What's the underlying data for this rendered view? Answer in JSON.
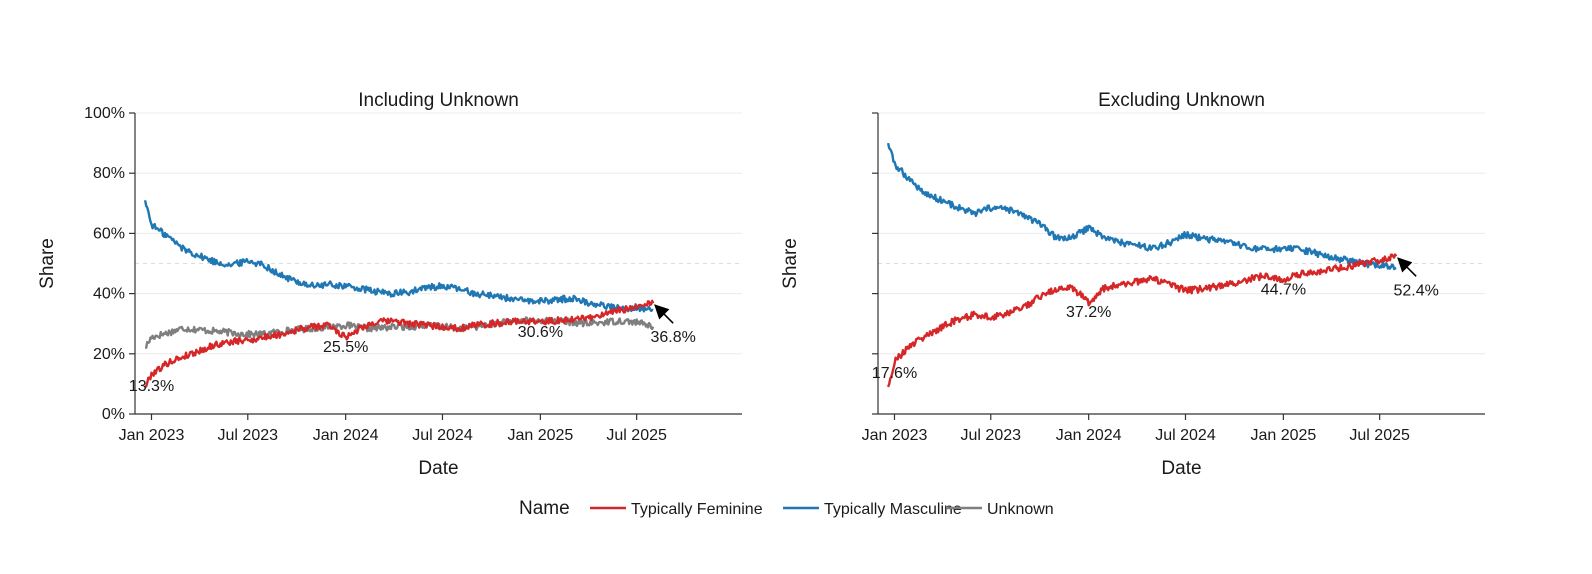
{
  "chart_data": [
    {
      "type": "line",
      "title": "Including Unknown",
      "xlabel": "Date",
      "ylabel": "Share",
      "ylim": [
        0,
        100
      ],
      "y_ticks": [
        0,
        20,
        40,
        60,
        80,
        100
      ],
      "y_tick_labels": [
        "0%",
        "20%",
        "40%",
        "60%",
        "80%",
        "100%"
      ],
      "xlim": [
        "2022-12-01",
        "2026-01-15"
      ],
      "x_ticks": [
        "2023-01-01",
        "2023-07-01",
        "2024-01-01",
        "2024-07-01",
        "2025-01-01",
        "2025-07-01"
      ],
      "x_tick_labels": [
        "Jan 2023",
        "Jul 2023",
        "Jan 2024",
        "Jul 2024",
        "Jan 2025",
        "Jul 2025"
      ],
      "grid": "horizontal",
      "reference_line": 50,
      "series": [
        {
          "name": "Typically Feminine",
          "color": "#d62728",
          "x": [
            "2022-12-20",
            "2023-01-01",
            "2023-01-15",
            "2023-02-01",
            "2023-03-01",
            "2023-04-01",
            "2023-05-01",
            "2023-06-01",
            "2023-07-01",
            "2023-08-01",
            "2023-09-01",
            "2023-10-01",
            "2023-11-01",
            "2023-12-01",
            "2024-01-01",
            "2024-02-01",
            "2024-03-01",
            "2024-04-01",
            "2024-05-01",
            "2024-06-01",
            "2024-07-01",
            "2024-08-01",
            "2024-09-01",
            "2024-10-01",
            "2024-11-01",
            "2024-12-01",
            "2025-01-01",
            "2025-02-01",
            "2025-03-01",
            "2025-04-01",
            "2025-05-01",
            "2025-06-01",
            "2025-07-01",
            "2025-08-01"
          ],
          "y": [
            9,
            13.3,
            15,
            17,
            19,
            21,
            23,
            24,
            24.5,
            25.5,
            26.5,
            28,
            29,
            29.5,
            25.5,
            29,
            30.5,
            31,
            30,
            29.5,
            29,
            28.5,
            29.5,
            30,
            30.5,
            31,
            30.6,
            31,
            31.5,
            32,
            33,
            34.5,
            35.5,
            36.8
          ]
        },
        {
          "name": "Typically Masculine",
          "color": "#1f77b4",
          "x": [
            "2022-12-20",
            "2023-01-01",
            "2023-01-15",
            "2023-02-01",
            "2023-03-01",
            "2023-04-01",
            "2023-05-01",
            "2023-06-01",
            "2023-07-01",
            "2023-08-01",
            "2023-09-01",
            "2023-10-01",
            "2023-11-01",
            "2023-12-01",
            "2024-01-01",
            "2024-02-01",
            "2024-03-01",
            "2024-04-01",
            "2024-05-01",
            "2024-06-01",
            "2024-07-01",
            "2024-08-01",
            "2024-09-01",
            "2024-10-01",
            "2024-11-01",
            "2024-12-01",
            "2025-01-01",
            "2025-02-01",
            "2025-03-01",
            "2025-04-01",
            "2025-05-01",
            "2025-06-01",
            "2025-07-01",
            "2025-08-01"
          ],
          "y": [
            71,
            63,
            61,
            59,
            55,
            52.5,
            50.5,
            49.5,
            51,
            49.5,
            46,
            44,
            42.5,
            43,
            42.5,
            41.5,
            40.5,
            40,
            40.5,
            42,
            42.5,
            41.5,
            40,
            39.5,
            38.5,
            37.5,
            37.5,
            38,
            38.5,
            37,
            36,
            35,
            35.5,
            34.5
          ]
        },
        {
          "name": "Unknown",
          "color": "#7f7f7f",
          "x": [
            "2022-12-20",
            "2023-01-01",
            "2023-02-01",
            "2023-03-01",
            "2023-04-01",
            "2023-05-01",
            "2023-06-01",
            "2023-07-01",
            "2023-08-01",
            "2023-09-01",
            "2023-10-01",
            "2023-11-01",
            "2023-12-01",
            "2024-01-01",
            "2024-02-01",
            "2024-03-01",
            "2024-04-01",
            "2024-05-01",
            "2024-06-01",
            "2024-07-01",
            "2024-08-01",
            "2024-09-01",
            "2024-10-01",
            "2024-11-01",
            "2024-12-01",
            "2025-01-01",
            "2025-02-01",
            "2025-03-01",
            "2025-04-01",
            "2025-05-01",
            "2025-06-01",
            "2025-07-01",
            "2025-08-01"
          ],
          "y": [
            22,
            25.5,
            27,
            28.5,
            28,
            27.5,
            27,
            26.5,
            26.5,
            27.5,
            28,
            28.5,
            29,
            29.5,
            28.5,
            28.5,
            29,
            29,
            29.5,
            29,
            28.5,
            29,
            30,
            30.5,
            31,
            31,
            31,
            30.5,
            30,
            30.5,
            31,
            30.5,
            29
          ]
        }
      ],
      "annotations": [
        {
          "text": "13.3%",
          "x": "2023-01-01",
          "y": 13.3
        },
        {
          "text": "25.5%",
          "x": "2024-01-01",
          "y": 25.5
        },
        {
          "text": "30.6%",
          "x": "2025-01-01",
          "y": 30.6
        },
        {
          "text": "36.8%",
          "x": "2025-08-01",
          "y": 36.8,
          "arrow": true
        }
      ]
    },
    {
      "type": "line",
      "title": "Excluding Unknown",
      "xlabel": "Date",
      "ylabel": "Share",
      "ylim": [
        0,
        100
      ],
      "y_ticks": [
        0,
        20,
        40,
        60,
        80,
        100
      ],
      "y_tick_labels": [
        "",
        "",
        "",
        "",
        "",
        ""
      ],
      "xlim": [
        "2022-12-01",
        "2026-01-15"
      ],
      "x_ticks": [
        "2023-01-01",
        "2023-07-01",
        "2024-01-01",
        "2024-07-01",
        "2025-01-01",
        "2025-07-01"
      ],
      "x_tick_labels": [
        "Jan 2023",
        "Jul 2023",
        "Jan 2024",
        "Jul 2024",
        "Jan 2025",
        "Jul 2025"
      ],
      "grid": "horizontal",
      "reference_line": 50,
      "series": [
        {
          "name": "Typically Feminine",
          "color": "#d62728",
          "x": [
            "2022-12-20",
            "2023-01-01",
            "2023-01-15",
            "2023-02-01",
            "2023-03-01",
            "2023-04-01",
            "2023-05-01",
            "2023-06-01",
            "2023-07-01",
            "2023-08-01",
            "2023-09-01",
            "2023-10-01",
            "2023-11-01",
            "2023-12-01",
            "2024-01-01",
            "2024-02-01",
            "2024-03-01",
            "2024-04-01",
            "2024-05-01",
            "2024-06-01",
            "2024-07-01",
            "2024-08-01",
            "2024-09-01",
            "2024-10-01",
            "2024-11-01",
            "2024-12-01",
            "2025-01-01",
            "2025-02-01",
            "2025-03-01",
            "2025-04-01",
            "2025-05-01",
            "2025-06-01",
            "2025-07-01",
            "2025-08-01"
          ],
          "y": [
            9,
            17.6,
            20,
            23,
            26,
            29,
            31.5,
            33,
            32,
            33.5,
            35.5,
            39,
            41.5,
            42,
            37.2,
            42,
            43,
            44,
            45,
            43,
            41,
            41.5,
            42.5,
            43.5,
            45,
            46,
            44.7,
            46.5,
            47,
            48,
            49,
            50,
            51,
            52.4
          ]
        },
        {
          "name": "Typically Masculine",
          "color": "#1f77b4",
          "x": [
            "2022-12-20",
            "2023-01-01",
            "2023-01-15",
            "2023-02-01",
            "2023-03-01",
            "2023-04-01",
            "2023-05-01",
            "2023-06-01",
            "2023-07-01",
            "2023-08-01",
            "2023-09-01",
            "2023-10-01",
            "2023-11-01",
            "2023-12-01",
            "2024-01-01",
            "2024-02-01",
            "2024-03-01",
            "2024-04-01",
            "2024-05-01",
            "2024-06-01",
            "2024-07-01",
            "2024-08-01",
            "2024-09-01",
            "2024-10-01",
            "2024-11-01",
            "2024-12-01",
            "2025-01-01",
            "2025-02-01",
            "2025-03-01",
            "2025-04-01",
            "2025-05-01",
            "2025-06-01",
            "2025-07-01",
            "2025-08-01"
          ],
          "y": [
            90,
            83,
            80.5,
            77.5,
            73,
            71,
            68.5,
            66.5,
            68.5,
            68,
            66,
            63,
            58.5,
            58.5,
            62,
            58.5,
            57,
            56,
            55,
            57,
            59.5,
            58.5,
            57.5,
            56.5,
            55,
            54.5,
            55,
            54.5,
            53.5,
            52,
            51,
            50,
            49.5,
            48.5
          ]
        }
      ],
      "annotations": [
        {
          "text": "17.6%",
          "x": "2023-01-01",
          "y": 17.6
        },
        {
          "text": "37.2%",
          "x": "2024-01-01",
          "y": 37.2
        },
        {
          "text": "44.7%",
          "x": "2025-01-01",
          "y": 44.7
        },
        {
          "text": "52.4%",
          "x": "2025-08-01",
          "y": 52.4,
          "arrow": true
        }
      ]
    }
  ],
  "legend": {
    "title": "Name",
    "placement": "bottom-center",
    "items": [
      {
        "name": "Typically Feminine",
        "color": "#d62728"
      },
      {
        "name": "Typically Masculine",
        "color": "#1f77b4"
      },
      {
        "name": "Unknown",
        "color": "#7f7f7f"
      }
    ]
  }
}
